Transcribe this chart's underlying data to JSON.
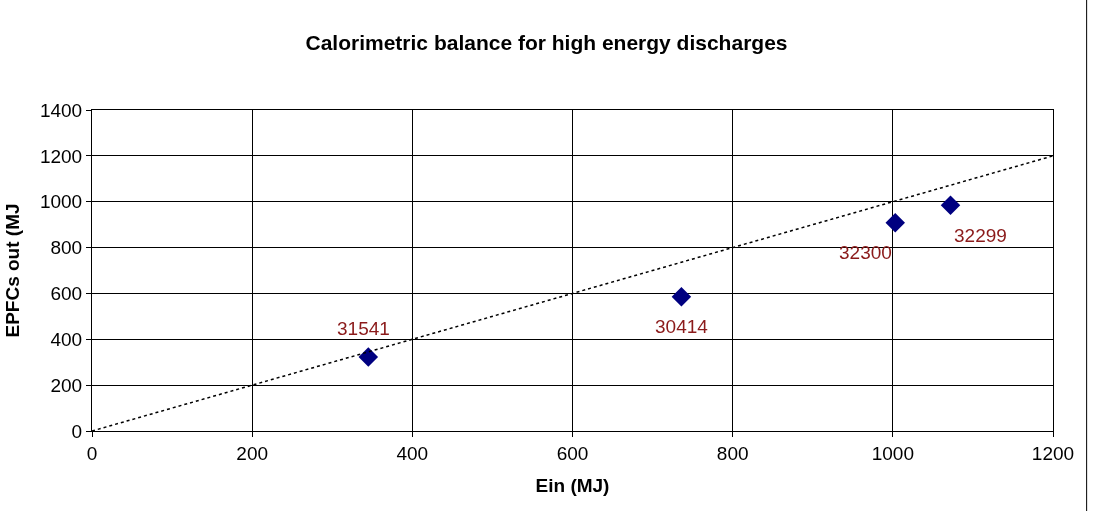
{
  "chart_data": {
    "type": "scatter",
    "title": "Calorimetric balance for high energy discharges",
    "xlabel": "Ein (MJ)",
    "ylabel": "EPFCs out (MJ",
    "xlim": [
      0,
      1200
    ],
    "xticks": [
      0,
      200,
      400,
      600,
      800,
      1000,
      1200
    ],
    "ylim": [
      0,
      1400
    ],
    "yticks": [
      0,
      200,
      400,
      600,
      800,
      1000,
      1200,
      1400
    ],
    "series": [
      {
        "color": "#000080",
        "marker": "diamond",
        "x": [
          345,
          736,
          1003,
          1072
        ],
        "values": [
          323,
          585,
          908,
          985
        ]
      },
      {
        "type": "line",
        "color": "#000000",
        "marker": "none",
        "line_style": "dotted",
        "x": [
          0,
          1200
        ],
        "values": [
          0,
          1200
        ]
      }
    ],
    "annotations": [
      {
        "text": "31541",
        "x": 345,
        "y": 323
      },
      {
        "text": "30414",
        "x": 736,
        "y": 585
      },
      {
        "text": "32300",
        "x": 1003,
        "y": 908
      },
      {
        "text": "32299",
        "x": 1072,
        "y": 985
      }
    ],
    "grid": true
  }
}
